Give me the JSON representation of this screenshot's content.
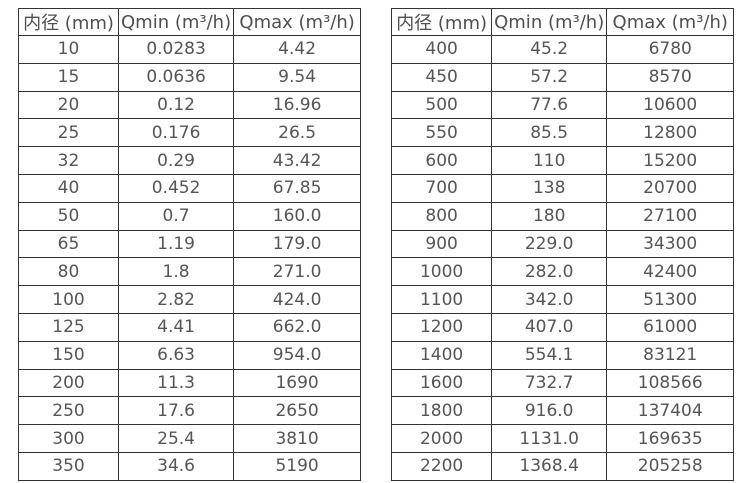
{
  "tables": [
    {
      "name": "small-diameter-table",
      "headers": [
        "内径 (mm)",
        "Qmin (m³/h)",
        "Qmax (m³/h)"
      ],
      "rows": [
        [
          "10",
          "0.0283",
          "4.42"
        ],
        [
          "15",
          "0.0636",
          "9.54"
        ],
        [
          "20",
          "0.12",
          "16.96"
        ],
        [
          "25",
          "0.176",
          "26.5"
        ],
        [
          "32",
          "0.29",
          "43.42"
        ],
        [
          "40",
          "0.452",
          "67.85"
        ],
        [
          "50",
          "0.7",
          "160.0"
        ],
        [
          "65",
          "1.19",
          "179.0"
        ],
        [
          "80",
          "1.8",
          "271.0"
        ],
        [
          "100",
          "2.82",
          "424.0"
        ],
        [
          "125",
          "4.41",
          "662.0"
        ],
        [
          "150",
          "6.63",
          "954.0"
        ],
        [
          "200",
          "11.3",
          "1690"
        ],
        [
          "250",
          "17.6",
          "2650"
        ],
        [
          "300",
          "25.4",
          "3810"
        ],
        [
          "350",
          "34.6",
          "5190"
        ]
      ]
    },
    {
      "name": "large-diameter-table",
      "headers": [
        "内径 (mm)",
        "Qmin (m³/h)",
        "Qmax (m³/h)"
      ],
      "rows": [
        [
          "400",
          "45.2",
          "6780"
        ],
        [
          "450",
          "57.2",
          "8570"
        ],
        [
          "500",
          "77.6",
          "10600"
        ],
        [
          "550",
          "85.5",
          "12800"
        ],
        [
          "600",
          "110",
          "15200"
        ],
        [
          "700",
          "138",
          "20700"
        ],
        [
          "800",
          "180",
          "27100"
        ],
        [
          "900",
          "229.0",
          "34300"
        ],
        [
          "1000",
          "282.0",
          "42400"
        ],
        [
          "1100",
          "342.0",
          "51300"
        ],
        [
          "1200",
          "407.0",
          "61000"
        ],
        [
          "1400",
          "554.1",
          "83121"
        ],
        [
          "1600",
          "732.7",
          "108566"
        ],
        [
          "1800",
          "916.0",
          "137404"
        ],
        [
          "2000",
          "1131.0",
          "169635"
        ],
        [
          "2200",
          "1368.4",
          "205258"
        ]
      ]
    }
  ],
  "colors": {
    "border": "#333333",
    "text": "#555555",
    "background": "#ffffff"
  }
}
